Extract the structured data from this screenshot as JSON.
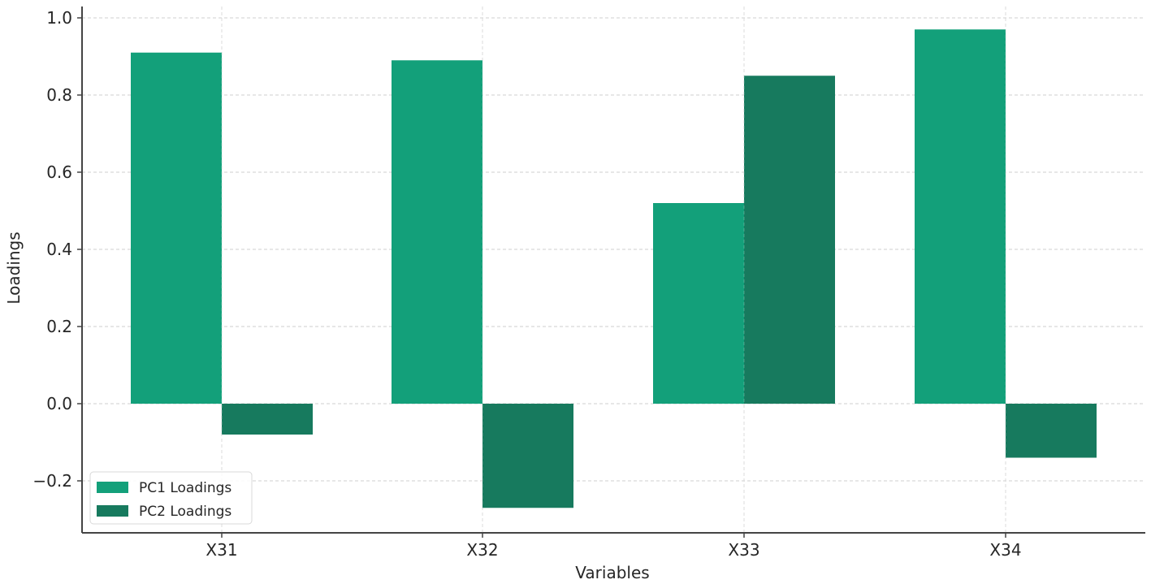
{
  "chart_data": {
    "type": "bar",
    "title": "",
    "xlabel": "Variables",
    "ylabel": "Loadings",
    "categories": [
      "X31",
      "X32",
      "X33",
      "X34"
    ],
    "series": [
      {
        "name": "PC1 Loadings",
        "color": "#13a07a",
        "values": [
          0.91,
          0.89,
          0.52,
          0.97
        ]
      },
      {
        "name": "PC2 Loadings",
        "color": "#177a5e",
        "values": [
          -0.08,
          -0.27,
          0.85,
          -0.14
        ]
      }
    ],
    "ylim": [
      -0.33,
      1.04
    ],
    "yticks": [
      -0.2,
      0.0,
      0.2,
      0.4,
      0.6,
      0.8,
      1.0
    ],
    "ytick_labels": [
      "−0.2",
      "0.0",
      "0.2",
      "0.4",
      "0.6",
      "0.8",
      "1.0"
    ],
    "grid": true,
    "legend_position": "lower left"
  }
}
